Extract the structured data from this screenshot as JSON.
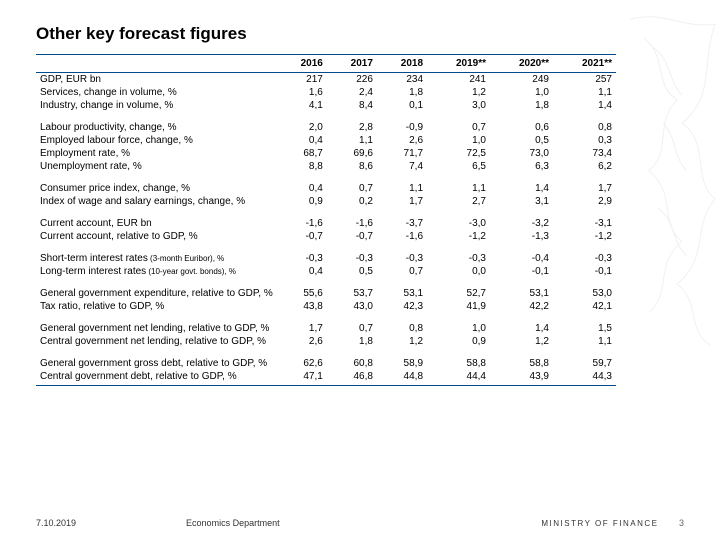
{
  "title": "Other key forecast figures",
  "columns": [
    "2016",
    "2017",
    "2018",
    "2019**",
    "2020**",
    "2021**"
  ],
  "groups": [
    {
      "rows": [
        {
          "label": "GDP, EUR bn",
          "v": [
            "217",
            "226",
            "234",
            "241",
            "249",
            "257"
          ]
        },
        {
          "label": "Services, change in volume, %",
          "v": [
            "1,6",
            "2,4",
            "1,8",
            "1,2",
            "1,0",
            "1,1"
          ]
        },
        {
          "label": "Industry, change in volume, %",
          "v": [
            "4,1",
            "8,4",
            "0,1",
            "3,0",
            "1,8",
            "1,4"
          ]
        }
      ]
    },
    {
      "rows": [
        {
          "label": "Labour productivity, change, %",
          "v": [
            "2,0",
            "2,8",
            "-0,9",
            "0,7",
            "0,6",
            "0,8"
          ]
        },
        {
          "label": "Employed labour force, change, %",
          "v": [
            "0,4",
            "1,1",
            "2,6",
            "1,0",
            "0,5",
            "0,3"
          ]
        },
        {
          "label": "Employment rate, %",
          "v": [
            "68,7",
            "69,6",
            "71,7",
            "72,5",
            "73,0",
            "73,4"
          ]
        },
        {
          "label": "Unemployment rate, %",
          "v": [
            "8,8",
            "8,6",
            "7,4",
            "6,5",
            "6,3",
            "6,2"
          ]
        }
      ]
    },
    {
      "rows": [
        {
          "label": "Consumer price index, change, %",
          "v": [
            "0,4",
            "0,7",
            "1,1",
            "1,1",
            "1,4",
            "1,7"
          ]
        },
        {
          "label": "Index of wage and salary earnings, change, %",
          "v": [
            "0,9",
            "0,2",
            "1,7",
            "2,7",
            "3,1",
            "2,9"
          ]
        }
      ]
    },
    {
      "rows": [
        {
          "label": "Current account, EUR bn",
          "v": [
            "-1,6",
            "-1,6",
            "-3,7",
            "-3,0",
            "-3,2",
            "-3,1"
          ]
        },
        {
          "label": "Current account, relative to GDP, %",
          "v": [
            "-0,7",
            "-0,7",
            "-1,6",
            "-1,2",
            "-1,3",
            "-1,2"
          ]
        }
      ]
    },
    {
      "rows": [
        {
          "label": "Short-term interest rates",
          "note": "(3-month Euribor), %",
          "v": [
            "-0,3",
            "-0,3",
            "-0,3",
            "-0,3",
            "-0,4",
            "-0,3"
          ]
        },
        {
          "label": "Long-term interest rates",
          "note": "(10-year govt. bonds), %",
          "v": [
            "0,4",
            "0,5",
            "0,7",
            "0,0",
            "-0,1",
            "-0,1"
          ]
        }
      ]
    },
    {
      "rows": [
        {
          "label": "General government expenditure, relative to GDP, %",
          "v": [
            "55,6",
            "53,7",
            "53,1",
            "52,7",
            "53,1",
            "53,0"
          ]
        },
        {
          "label": "Tax ratio, relative to GDP, %",
          "v": [
            "43,8",
            "43,0",
            "42,3",
            "41,9",
            "42,2",
            "42,1"
          ]
        }
      ]
    },
    {
      "rows": [
        {
          "label": "General government net lending, relative to GDP, %",
          "v": [
            "1,7",
            "0,7",
            "0,8",
            "1,0",
            "1,4",
            "1,5"
          ]
        },
        {
          "label": "Central government net lending, relative to GDP, %",
          "v": [
            "2,6",
            "1,8",
            "1,2",
            "0,9",
            "1,2",
            "1,1"
          ]
        }
      ]
    },
    {
      "rows": [
        {
          "label": "General government gross debt, relative to GDP, %",
          "v": [
            "62,6",
            "60,8",
            "58,9",
            "58,8",
            "58,8",
            "59,7"
          ]
        },
        {
          "label": "Central government debt, relative to GDP, %",
          "v": [
            "47,1",
            "46,8",
            "44,8",
            "44,4",
            "43,9",
            "44,3"
          ]
        }
      ]
    }
  ],
  "footer": {
    "date": "7.10.2019",
    "dept": "Economics Department",
    "ministry": "MINISTRY OF FINANCE",
    "page": "3"
  }
}
